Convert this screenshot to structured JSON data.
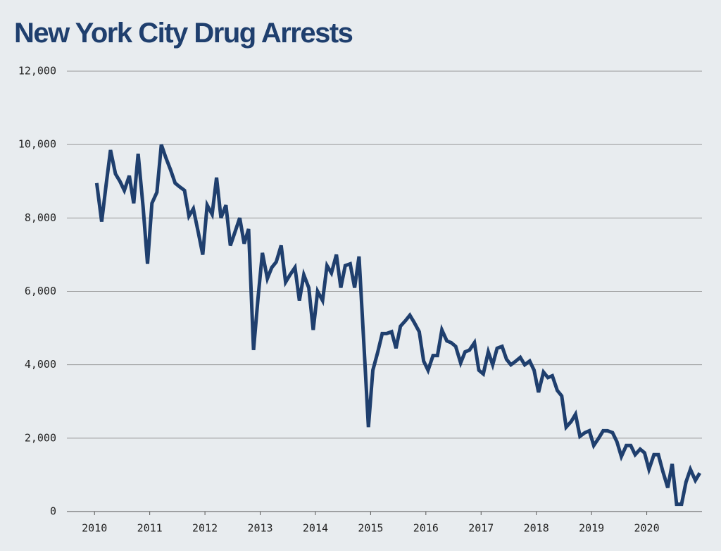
{
  "chart_data": {
    "type": "line",
    "title": "New York City Drug Arrests",
    "x": [
      2010.04,
      2010.13,
      2010.21,
      2010.29,
      2010.38,
      2010.46,
      2010.54,
      2010.63,
      2010.71,
      2010.79,
      2010.88,
      2010.96,
      2011.04,
      2011.13,
      2011.21,
      2011.29,
      2011.38,
      2011.46,
      2011.54,
      2011.63,
      2011.71,
      2011.79,
      2011.88,
      2011.96,
      2012.04,
      2012.13,
      2012.21,
      2012.29,
      2012.38,
      2012.46,
      2012.54,
      2012.63,
      2012.71,
      2012.79,
      2012.88,
      2012.96,
      2013.04,
      2013.13,
      2013.21,
      2013.29,
      2013.38,
      2013.46,
      2013.54,
      2013.63,
      2013.71,
      2013.79,
      2013.88,
      2013.96,
      2014.04,
      2014.13,
      2014.21,
      2014.29,
      2014.38,
      2014.46,
      2014.54,
      2014.63,
      2014.71,
      2014.79,
      2014.88,
      2014.96,
      2015.04,
      2015.13,
      2015.21,
      2015.29,
      2015.38,
      2015.46,
      2015.54,
      2015.63,
      2015.71,
      2015.79,
      2015.88,
      2015.96,
      2016.04,
      2016.13,
      2016.21,
      2016.29,
      2016.38,
      2016.46,
      2016.54,
      2016.63,
      2016.71,
      2016.79,
      2016.88,
      2016.96,
      2017.04,
      2017.13,
      2017.21,
      2017.29,
      2017.38,
      2017.46,
      2017.54,
      2017.63,
      2017.71,
      2017.79,
      2017.88,
      2017.96,
      2018.04,
      2018.13,
      2018.21,
      2018.29,
      2018.38,
      2018.46,
      2018.54,
      2018.63,
      2018.71,
      2018.79,
      2018.88,
      2018.96,
      2019.04,
      2019.13,
      2019.21,
      2019.29,
      2019.38,
      2019.46,
      2019.54,
      2019.63,
      2019.71,
      2019.79,
      2019.88,
      2019.96,
      2020.04,
      2020.13,
      2020.21,
      2020.29,
      2020.38,
      2020.46,
      2020.54,
      2020.63,
      2020.71,
      2020.79,
      2020.88,
      2020.96
    ],
    "values": [
      8950,
      7900,
      8900,
      9850,
      9200,
      9000,
      8750,
      9150,
      8400,
      9750,
      8300,
      6750,
      8400,
      8700,
      10000,
      9650,
      9300,
      8950,
      8850,
      8750,
      8050,
      8250,
      7600,
      7000,
      8350,
      8100,
      9100,
      8000,
      8350,
      7250,
      7600,
      8000,
      7300,
      7700,
      4400,
      5800,
      7050,
      6350,
      6650,
      6800,
      7250,
      6250,
      6450,
      6650,
      5750,
      6450,
      6100,
      4950,
      6000,
      5750,
      6700,
      6500,
      7000,
      6100,
      6700,
      6750,
      6100,
      6950,
      4500,
      2300,
      3850,
      4350,
      4850,
      4850,
      4900,
      4450,
      5050,
      5200,
      5350,
      5150,
      4900,
      4100,
      3850,
      4250,
      4250,
      4950,
      4650,
      4600,
      4500,
      4050,
      4350,
      4400,
      4600,
      3850,
      3750,
      4350,
      4000,
      4450,
      4500,
      4150,
      4000,
      4100,
      4200,
      4000,
      4100,
      3850,
      3250,
      3800,
      3650,
      3700,
      3300,
      3150,
      2300,
      2450,
      2650,
      2050,
      2150,
      2200,
      1800,
      2000,
      2200,
      2200,
      2150,
      1900,
      1500,
      1800,
      1800,
      1550,
      1700,
      1600,
      1150,
      1550,
      1550,
      1100,
      650,
      1300,
      200,
      200,
      800,
      1150,
      850,
      1050
    ],
    "color": "#1f3f6e",
    "xlim": [
      2009.5,
      2021
    ],
    "xticks": [
      2010,
      2011,
      2012,
      2013,
      2014,
      2015,
      2016,
      2017,
      2018,
      2019,
      2020
    ],
    "ylim": [
      0,
      12000
    ],
    "yticks": [
      0,
      {
        "value": 2000,
        "label": "2,000"
      },
      {
        "value": 4000,
        "label": "4,000"
      },
      {
        "value": 6000,
        "label": "6,000"
      },
      {
        "value": 8000,
        "label": "8,000"
      },
      {
        "value": 10000,
        "label": "10,000"
      },
      {
        "value": 12000,
        "label": "12,000"
      }
    ],
    "grid": true
  }
}
